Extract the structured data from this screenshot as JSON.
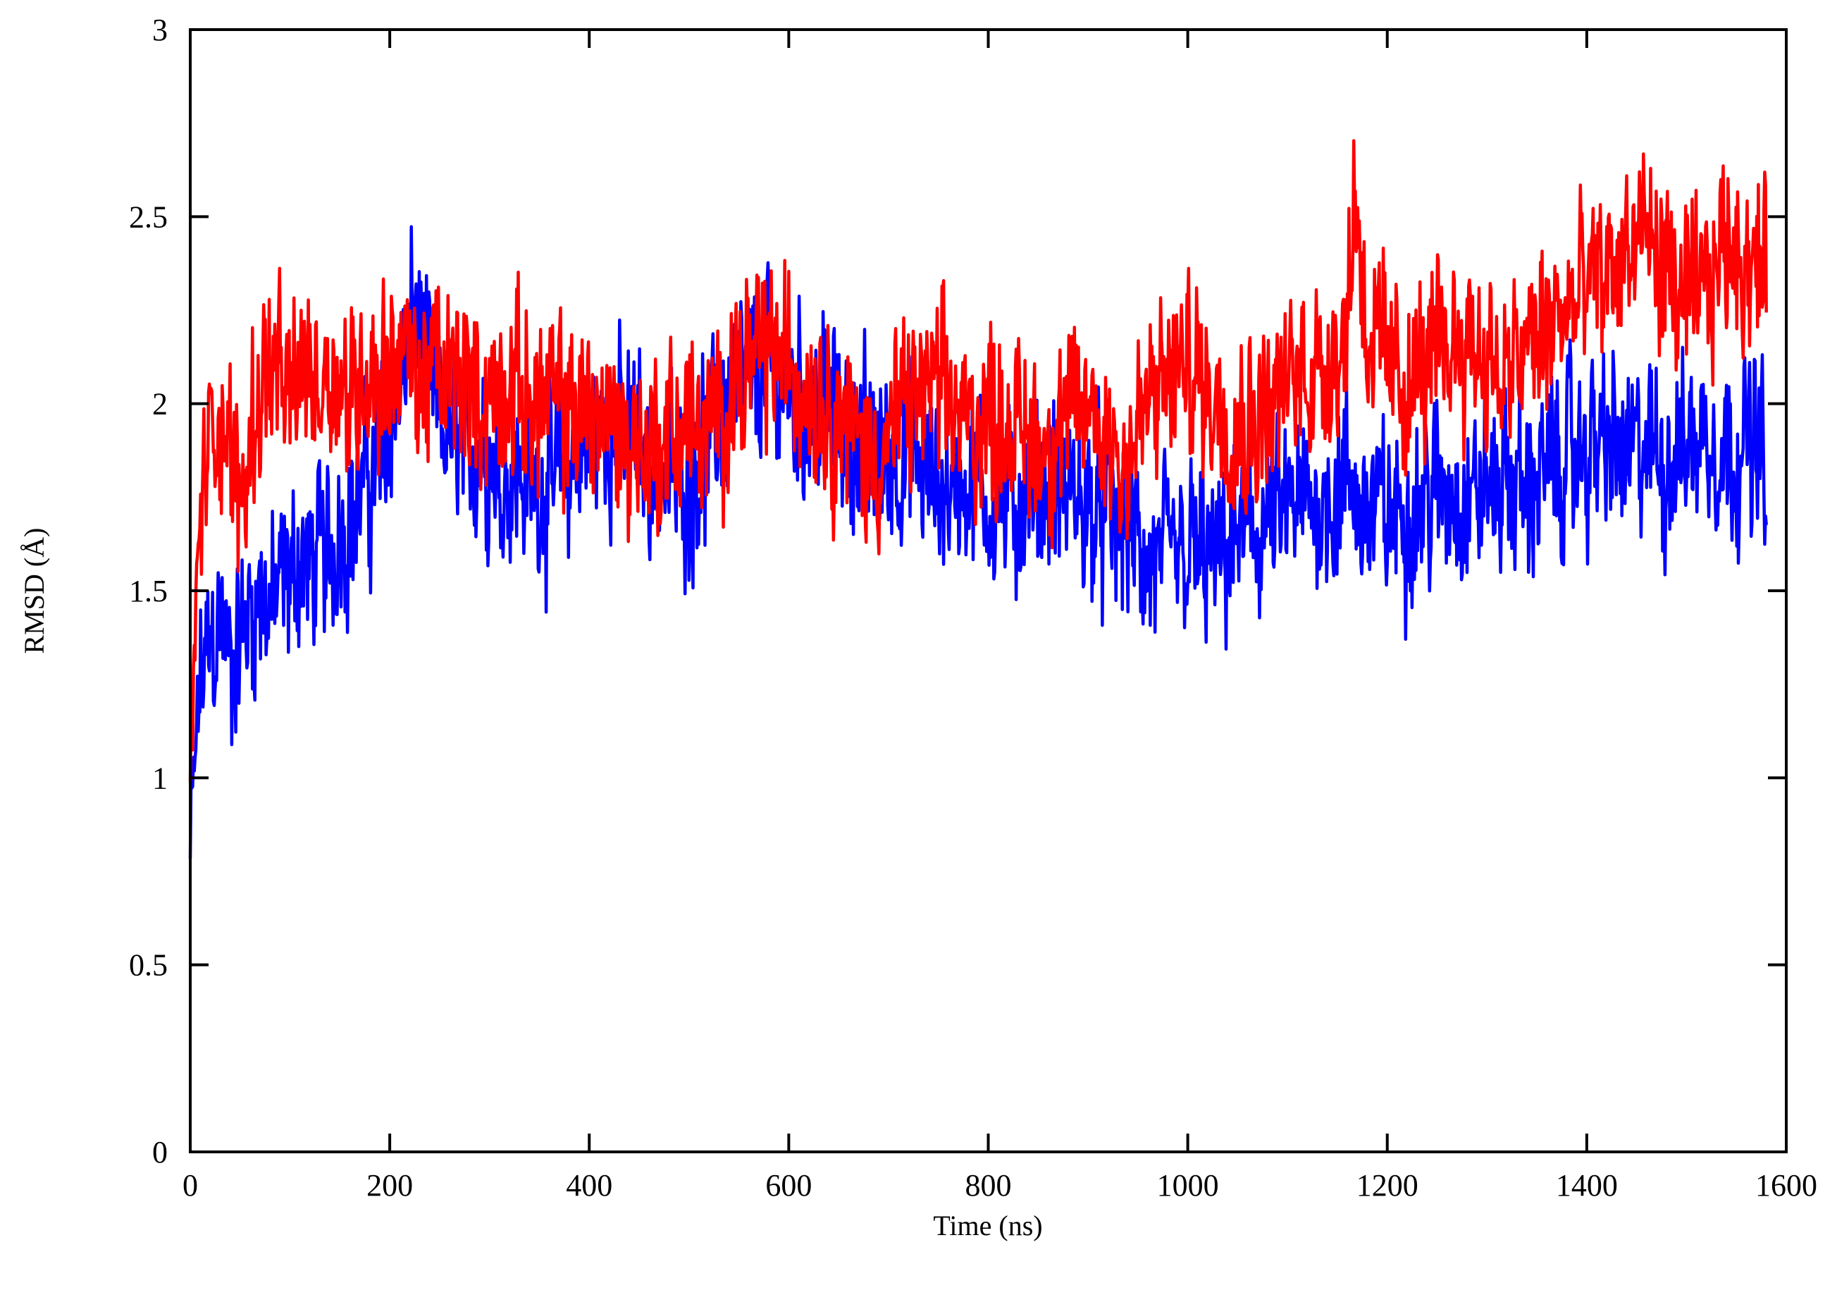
{
  "chart_data": {
    "type": "line",
    "title": "",
    "xlabel": "Time (ns)",
    "ylabel": "RMSD (Å)",
    "xlim": [
      0,
      1600
    ],
    "ylim": [
      0,
      3
    ],
    "x_ticks": [
      "0",
      "200",
      "400",
      "600",
      "800",
      "1000",
      "1200",
      "1400",
      "1600"
    ],
    "y_ticks": [
      "0",
      "0.5",
      "1",
      "1.5",
      "2",
      "2.5",
      "3"
    ],
    "grid": false,
    "legend": "none",
    "series": [
      {
        "color": "#0000ff",
        "x": [
          0,
          5,
          10,
          20,
          30,
          40,
          50,
          60,
          70,
          80,
          90,
          100,
          110,
          120,
          130,
          140,
          150,
          160,
          170,
          180,
          190,
          200,
          210,
          220,
          226,
          230,
          240,
          250,
          260,
          270,
          280,
          290,
          300,
          320,
          340,
          360,
          380,
          400,
          420,
          440,
          460,
          480,
          500,
          520,
          540,
          560,
          580,
          600,
          620,
          640,
          660,
          680,
          700,
          720,
          740,
          760,
          780,
          800,
          820,
          840,
          860,
          880,
          900,
          920,
          940,
          950,
          960,
          980,
          1000,
          1020,
          1030,
          1040,
          1060,
          1080,
          1100,
          1120,
          1140,
          1160,
          1180,
          1200,
          1220,
          1240,
          1260,
          1280,
          1300,
          1320,
          1340,
          1360,
          1380,
          1400,
          1420,
          1440,
          1460,
          1480,
          1500,
          1520,
          1540,
          1560,
          1580
        ],
        "y": [
          0.8,
          1.05,
          1.25,
          1.35,
          1.42,
          1.3,
          1.38,
          1.45,
          1.5,
          1.45,
          1.5,
          1.52,
          1.6,
          1.55,
          1.62,
          1.58,
          1.7,
          1.68,
          1.75,
          1.8,
          1.85,
          1.95,
          2.05,
          2.15,
          2.3,
          2.2,
          2.05,
          1.95,
          1.9,
          1.92,
          1.88,
          1.9,
          1.85,
          1.82,
          1.8,
          1.78,
          1.82,
          1.9,
          1.95,
          1.92,
          1.85,
          1.82,
          1.8,
          1.9,
          2.0,
          2.05,
          2.1,
          2.05,
          2.0,
          1.98,
          1.92,
          1.88,
          1.85,
          1.86,
          1.8,
          1.78,
          1.8,
          1.75,
          1.72,
          1.75,
          1.78,
          1.75,
          1.72,
          1.7,
          1.65,
          1.62,
          1.55,
          1.58,
          1.6,
          1.58,
          1.55,
          1.62,
          1.65,
          1.68,
          1.7,
          1.72,
          1.75,
          1.78,
          1.72,
          1.7,
          1.72,
          1.75,
          1.78,
          1.75,
          1.78,
          1.8,
          1.78,
          1.82,
          1.85,
          1.88,
          1.9,
          1.85,
          1.88,
          1.85,
          1.9,
          1.92,
          1.88,
          1.9,
          1.85
        ]
      },
      {
        "color": "#ff0000",
        "x": [
          0,
          5,
          10,
          20,
          30,
          40,
          50,
          60,
          70,
          80,
          90,
          100,
          110,
          120,
          130,
          140,
          150,
          160,
          170,
          180,
          190,
          200,
          210,
          220,
          230,
          240,
          250,
          260,
          270,
          280,
          290,
          300,
          320,
          340,
          360,
          380,
          400,
          420,
          440,
          460,
          480,
          500,
          520,
          540,
          560,
          580,
          600,
          620,
          640,
          660,
          680,
          700,
          720,
          740,
          760,
          780,
          800,
          820,
          840,
          860,
          880,
          900,
          920,
          940,
          960,
          980,
          1000,
          1020,
          1040,
          1060,
          1080,
          1100,
          1120,
          1140,
          1160,
          1167,
          1175,
          1180,
          1200,
          1220,
          1240,
          1260,
          1280,
          1300,
          1320,
          1340,
          1360,
          1380,
          1400,
          1420,
          1440,
          1460,
          1480,
          1500,
          1520,
          1540,
          1560,
          1580
        ],
        "y": [
          0.9,
          1.4,
          1.7,
          1.9,
          2.0,
          1.85,
          1.75,
          1.9,
          2.05,
          2.1,
          2.05,
          2.0,
          2.08,
          2.1,
          2.05,
          2.12,
          2.05,
          2.0,
          2.08,
          2.1,
          2.05,
          2.12,
          2.15,
          2.1,
          2.05,
          2.1,
          2.08,
          2.05,
          2.1,
          2.05,
          2.02,
          2.0,
          2.05,
          2.02,
          2.0,
          1.98,
          2.0,
          1.95,
          1.9,
          1.88,
          1.92,
          1.95,
          1.9,
          2.05,
          2.1,
          2.15,
          2.1,
          2.05,
          2.0,
          1.95,
          1.85,
          1.9,
          2.0,
          2.05,
          2.0,
          1.95,
          1.98,
          1.95,
          1.92,
          1.9,
          1.95,
          1.98,
          1.92,
          1.85,
          2.0,
          2.05,
          2.1,
          2.05,
          1.98,
          1.95,
          2.0,
          2.05,
          2.1,
          2.12,
          2.2,
          2.6,
          2.35,
          2.2,
          2.1,
          2.05,
          2.1,
          2.15,
          2.2,
          2.12,
          2.05,
          2.15,
          2.2,
          2.25,
          2.3,
          2.35,
          2.4,
          2.45,
          2.35,
          2.25,
          2.3,
          2.45,
          2.4,
          2.35
        ]
      }
    ]
  }
}
